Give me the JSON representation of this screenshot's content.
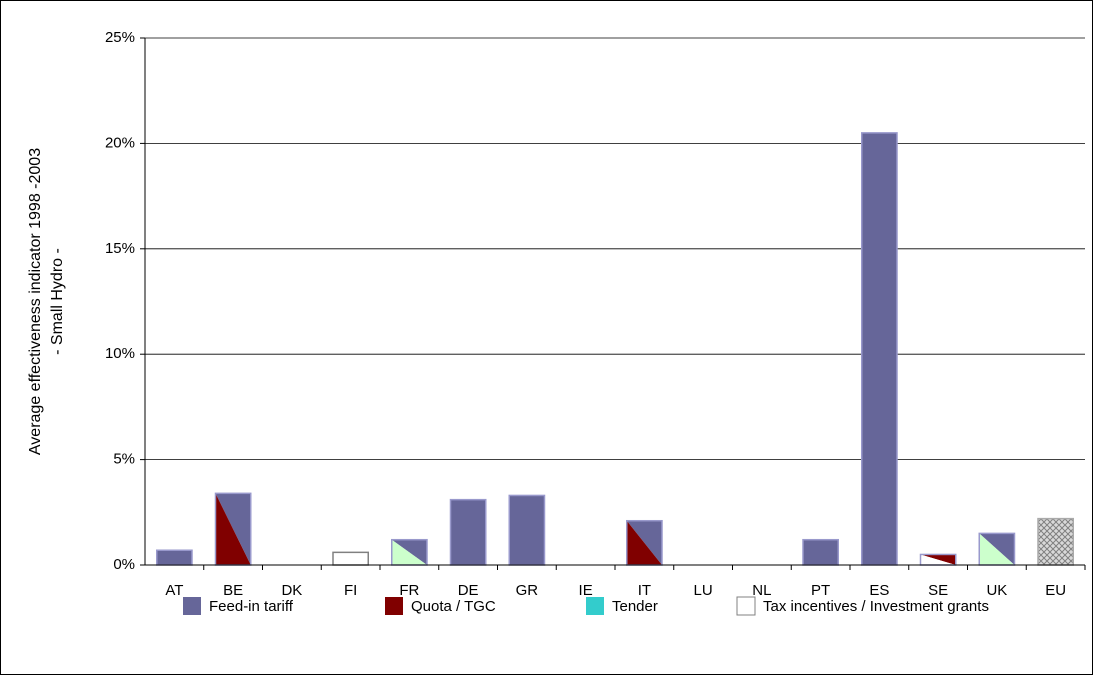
{
  "chart_data": {
    "type": "bar",
    "y_label": [
      "Average effectiveness indicator 1998 -2003",
      "- Small Hydro -"
    ],
    "categories": [
      "AT",
      "BE",
      "DK",
      "FI",
      "FR",
      "DE",
      "GR",
      "IE",
      "IT",
      "LU",
      "NL",
      "PT",
      "ES",
      "SE",
      "UK",
      "EU"
    ],
    "values": [
      0.7,
      3.4,
      0,
      0.6,
      1.2,
      3.1,
      3.3,
      0,
      2.1,
      0,
      0,
      1.2,
      20.5,
      0.5,
      1.5,
      2.2
    ],
    "bar_colors": [
      [
        "#666699"
      ],
      [
        "#666699",
        "#800000"
      ],
      [
        "#666699"
      ],
      [
        "#ffffff"
      ],
      [
        "#666699",
        "#ccffcc"
      ],
      [
        "#666699"
      ],
      [
        "#666699"
      ],
      [
        "#666699"
      ],
      [
        "#666699",
        "#800000"
      ],
      [
        "#666699"
      ],
      [
        "#666699"
      ],
      [
        "#666699"
      ],
      [
        "#666699"
      ],
      [
        "#800000",
        "#ffffff"
      ],
      [
        "#666699",
        "#ccffcc"
      ],
      [
        "hatch"
      ]
    ],
    "legend": [
      {
        "name": "Feed-in tariff",
        "color": "#666699"
      },
      {
        "name": "Quota / TGC",
        "color": "#800000"
      },
      {
        "name": "Tender",
        "color": "#33cccc"
      },
      {
        "name": "Tax incentives / Investment grants",
        "color": "#ffffff"
      }
    ],
    "ylim": [
      0,
      25
    ],
    "yticks": [
      {
        "value": 0,
        "label": "0%"
      },
      {
        "value": 5,
        "label": "5%"
      },
      {
        "value": 10,
        "label": "10%"
      },
      {
        "value": 15,
        "label": "15%"
      },
      {
        "value": 20,
        "label": "20%"
      },
      {
        "value": 25,
        "label": "25%"
      }
    ],
    "grid": true
  }
}
